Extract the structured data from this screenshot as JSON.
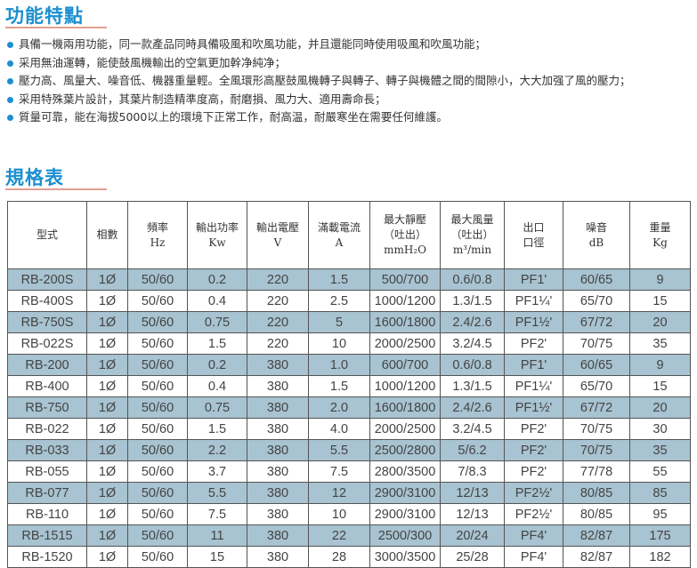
{
  "features": {
    "title": "功能特點",
    "items": [
      "具備一機兩用功能，同一款產品同時具備吸風和吹風功能，并且還能同時使用吸風和吹風功能；",
      "采用無油運轉，能使鼓風機輸出的空氣更加幹净純净；",
      "壓力高、風量大、噪音低、機器重量輕。全風環形高壓鼓風機轉子與轉子、轉子與機體之間的間隙小，大大加强了風的壓力；",
      "采用特殊葉片設計，其葉片制造精準度高，耐磨損、風力大、適用壽命長；",
      "質量可靠，能在海拔5000以上的環境下正常工作，耐高温，耐嚴寒坐在需要任何維護。"
    ],
    "bullet_color": "#1b8fd0"
  },
  "spec": {
    "title": "規格表",
    "headers": [
      [
        "型式"
      ],
      [
        "相數"
      ],
      [
        "頻率",
        "Hz"
      ],
      [
        "輸出功率",
        "Kw"
      ],
      [
        "輸出電壓",
        "V"
      ],
      [
        "滿載電流",
        "A"
      ],
      [
        "最大靜壓",
        "（吐出）",
        "mmH₂O"
      ],
      [
        "最大風量",
        "（吐出）",
        "m³/min"
      ],
      [
        "出口",
        "口徑"
      ],
      [
        "噪音",
        "dB"
      ],
      [
        "重量",
        "Kg"
      ]
    ],
    "rows": [
      [
        "RB-200S",
        "1Ø",
        "50/60",
        "0.2",
        "220",
        "1.5",
        "500/700",
        "0.6/0.8",
        "PF1'",
        "60/65",
        "9"
      ],
      [
        "RB-400S",
        "1Ø",
        "50/60",
        "0.4",
        "220",
        "2.5",
        "1000/1200",
        "1.3/1.5",
        "PF1¼'",
        "65/70",
        "15"
      ],
      [
        "RB-750S",
        "1Ø",
        "50/60",
        "0.75",
        "220",
        "5",
        "1600/1800",
        "2.4/2.6",
        "PF1½'",
        "67/72",
        "20"
      ],
      [
        "RB-022S",
        "1Ø",
        "50/60",
        "1.5",
        "220",
        "10",
        "2000/2500",
        "3.2/4.5",
        "PF2'",
        "70/75",
        "35"
      ],
      [
        "RB-200",
        "1Ø",
        "50/60",
        "0.2",
        "380",
        "1.0",
        "600/700",
        "0.6/0.8",
        "PF1'",
        "60/65",
        "9"
      ],
      [
        "RB-400",
        "1Ø",
        "50/60",
        "0.4",
        "380",
        "1.5",
        "1000/1200",
        "1.3/1.5",
        "PF1¼'",
        "65/70",
        "15"
      ],
      [
        "RB-750",
        "1Ø",
        "50/60",
        "0.75",
        "380",
        "2.0",
        "1600/1800",
        "2.4/2.6",
        "PF1½'",
        "67/72",
        "20"
      ],
      [
        "RB-022",
        "1Ø",
        "50/60",
        "1.5",
        "380",
        "4.0",
        "2000/2500",
        "3.2/4.5",
        "PF2'",
        "70/75",
        "30"
      ],
      [
        "RB-033",
        "1Ø",
        "50/60",
        "2.2",
        "380",
        "5.5",
        "2500/2800",
        "5/6.2",
        "PF2'",
        "70/75",
        "35"
      ],
      [
        "RB-055",
        "1Ø",
        "50/60",
        "3.7",
        "380",
        "7.5",
        "2800/3500",
        "7/8.3",
        "PF2'",
        "77/78",
        "55"
      ],
      [
        "RB-077",
        "1Ø",
        "50/60",
        "5.5",
        "380",
        "12",
        "2900/3100",
        "12/13",
        "PF2½'",
        "80/85",
        "85"
      ],
      [
        "RB-110",
        "1Ø",
        "50/60",
        "7.5",
        "380",
        "10",
        "2900/3100",
        "12/13",
        "PF2½'",
        "80/85",
        "95"
      ],
      [
        "RB-1515",
        "1Ø",
        "50/60",
        "11",
        "380",
        "22",
        "2500/300",
        "20/24",
        "PF4'",
        "82/87",
        "175"
      ],
      [
        "RB-1520",
        "1Ø",
        "50/60",
        "15",
        "380",
        "28",
        "3000/3500",
        "25/28",
        "PF4'",
        "82/87",
        "182"
      ]
    ],
    "shaded_row_color": "#a8c3d1"
  }
}
